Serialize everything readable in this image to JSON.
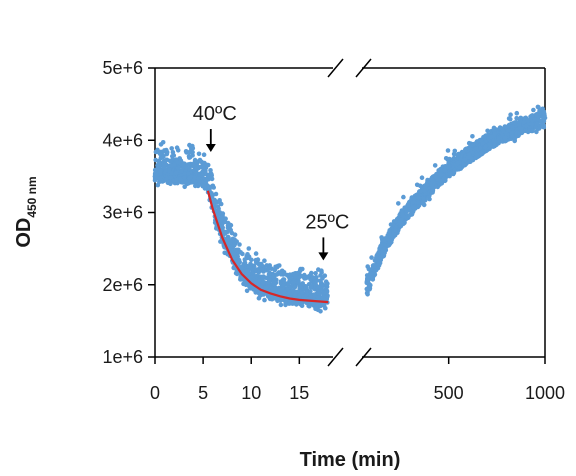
{
  "chart_data": {
    "type": "scatter",
    "title": "",
    "xlabel": "Time (min)",
    "ylabel_main": "OD",
    "ylabel_subscript": "450 nm",
    "ylim": [
      1000000,
      5000000
    ],
    "yticks": [
      1000000,
      2000000,
      3000000,
      4000000,
      5000000
    ],
    "ytick_labels": [
      "1e+6",
      "2e+6",
      "3e+6",
      "4e+6",
      "5e+6"
    ],
    "broken_x_axis": true,
    "segments": [
      {
        "xlim": [
          0,
          18.5
        ],
        "xticks": [
          0,
          5,
          10,
          15
        ],
        "xtick_labels": [
          "0",
          "5",
          "10",
          "15"
        ]
      },
      {
        "xlim": [
          50,
          1000
        ],
        "xticks": [
          500,
          1000
        ],
        "xtick_labels": [
          "500",
          "1000"
        ]
      }
    ],
    "series": [
      {
        "kind": "points",
        "color": "#5b9bd5",
        "segment_1": [
          [
            0,
            3500000
          ],
          [
            2.5,
            3480000
          ],
          [
            5,
            3450000
          ],
          [
            5.5,
            3300000
          ],
          [
            6,
            3050000
          ],
          [
            7,
            2650000
          ],
          [
            8,
            2350000
          ],
          [
            9,
            2150000
          ],
          [
            10,
            2020000
          ],
          [
            11,
            1930000
          ],
          [
            12,
            1880000
          ],
          [
            13,
            1840000
          ],
          [
            14,
            1810000
          ],
          [
            15,
            1790000
          ],
          [
            16,
            1780000
          ],
          [
            17,
            1770000
          ],
          [
            18,
            1760000
          ]
        ],
        "segment_2": [
          [
            75,
            1950000
          ],
          [
            150,
            2450000
          ],
          [
            250,
            2900000
          ],
          [
            350,
            3200000
          ],
          [
            450,
            3480000
          ],
          [
            550,
            3700000
          ],
          [
            650,
            3880000
          ],
          [
            750,
            4050000
          ],
          [
            850,
            4150000
          ],
          [
            950,
            4250000
          ],
          [
            1000,
            4300000
          ]
        ]
      },
      {
        "kind": "fit-line",
        "color": "#d62728",
        "segment_1": [
          [
            5.5,
            3300000
          ],
          [
            6,
            3050000
          ],
          [
            7,
            2650000
          ],
          [
            8,
            2350000
          ],
          [
            9,
            2150000
          ],
          [
            10,
            2020000
          ],
          [
            11,
            1930000
          ],
          [
            12,
            1880000
          ],
          [
            13,
            1840000
          ],
          [
            14,
            1810000
          ],
          [
            15,
            1790000
          ],
          [
            16,
            1780000
          ],
          [
            17,
            1770000
          ],
          [
            18,
            1760000
          ]
        ]
      }
    ],
    "annotations": [
      {
        "text": "40ºC",
        "segment": 1,
        "x": 5.8,
        "y": 4280000
      },
      {
        "text": "25ºC",
        "segment": 1,
        "x": 17.5,
        "y": 2780000
      }
    ]
  }
}
